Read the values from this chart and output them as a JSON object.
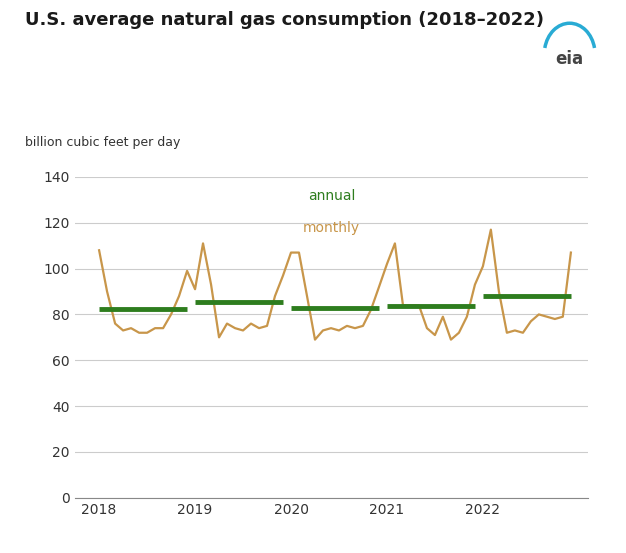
{
  "title": "U.S. average natural gas consumption (2018–2022)",
  "ylabel": "billion cubic feet per day",
  "monthly_x": [
    2018.0,
    2018.083,
    2018.167,
    2018.25,
    2018.333,
    2018.417,
    2018.5,
    2018.583,
    2018.667,
    2018.75,
    2018.833,
    2018.917,
    2019.0,
    2019.083,
    2019.167,
    2019.25,
    2019.333,
    2019.417,
    2019.5,
    2019.583,
    2019.667,
    2019.75,
    2019.833,
    2019.917,
    2020.0,
    2020.083,
    2020.167,
    2020.25,
    2020.333,
    2020.417,
    2020.5,
    2020.583,
    2020.667,
    2020.75,
    2020.833,
    2020.917,
    2021.0,
    2021.083,
    2021.167,
    2021.25,
    2021.333,
    2021.417,
    2021.5,
    2021.583,
    2021.667,
    2021.75,
    2021.833,
    2021.917,
    2022.0,
    2022.083,
    2022.167,
    2022.25,
    2022.333,
    2022.417,
    2022.5,
    2022.583,
    2022.667,
    2022.75,
    2022.833,
    2022.917
  ],
  "monthly_y": [
    108,
    90,
    76,
    73,
    74,
    72,
    72,
    74,
    74,
    80,
    88,
    99,
    91,
    111,
    93,
    70,
    76,
    74,
    73,
    76,
    74,
    75,
    88,
    97,
    107,
    107,
    88,
    69,
    73,
    74,
    73,
    75,
    74,
    75,
    82,
    92,
    102,
    111,
    84,
    84,
    84,
    74,
    71,
    79,
    69,
    72,
    79,
    93,
    101,
    117,
    90,
    72,
    73,
    72,
    77,
    80,
    79,
    78,
    79,
    107
  ],
  "annual_data": [
    {
      "year": 2018,
      "value": 82.5,
      "x_start": 2018.0,
      "x_end": 2018.917
    },
    {
      "year": 2019,
      "value": 85.5,
      "x_start": 2019.0,
      "x_end": 2019.917
    },
    {
      "year": 2020,
      "value": 83.0,
      "x_start": 2020.0,
      "x_end": 2020.917
    },
    {
      "year": 2021,
      "value": 83.5,
      "x_start": 2021.0,
      "x_end": 2021.917
    },
    {
      "year": 2022,
      "value": 88.0,
      "x_start": 2022.0,
      "x_end": 2022.917
    }
  ],
  "monthly_color": "#C8964A",
  "annual_color": "#2E7D1E",
  "bg_color": "#FFFFFF",
  "grid_color": "#CCCCCC",
  "ylim": [
    0,
    140
  ],
  "xlim": [
    2017.75,
    2023.1
  ],
  "yticks": [
    0,
    20,
    40,
    60,
    80,
    100,
    120,
    140
  ],
  "xticks": [
    2018,
    2019,
    2020,
    2021,
    2022
  ],
  "title_fontsize": 13,
  "ylabel_fontsize": 9,
  "tick_fontsize": 10,
  "legend_annual": "annual",
  "legend_monthly": "monthly",
  "monthly_linewidth": 1.6,
  "annual_linewidth": 3.5
}
